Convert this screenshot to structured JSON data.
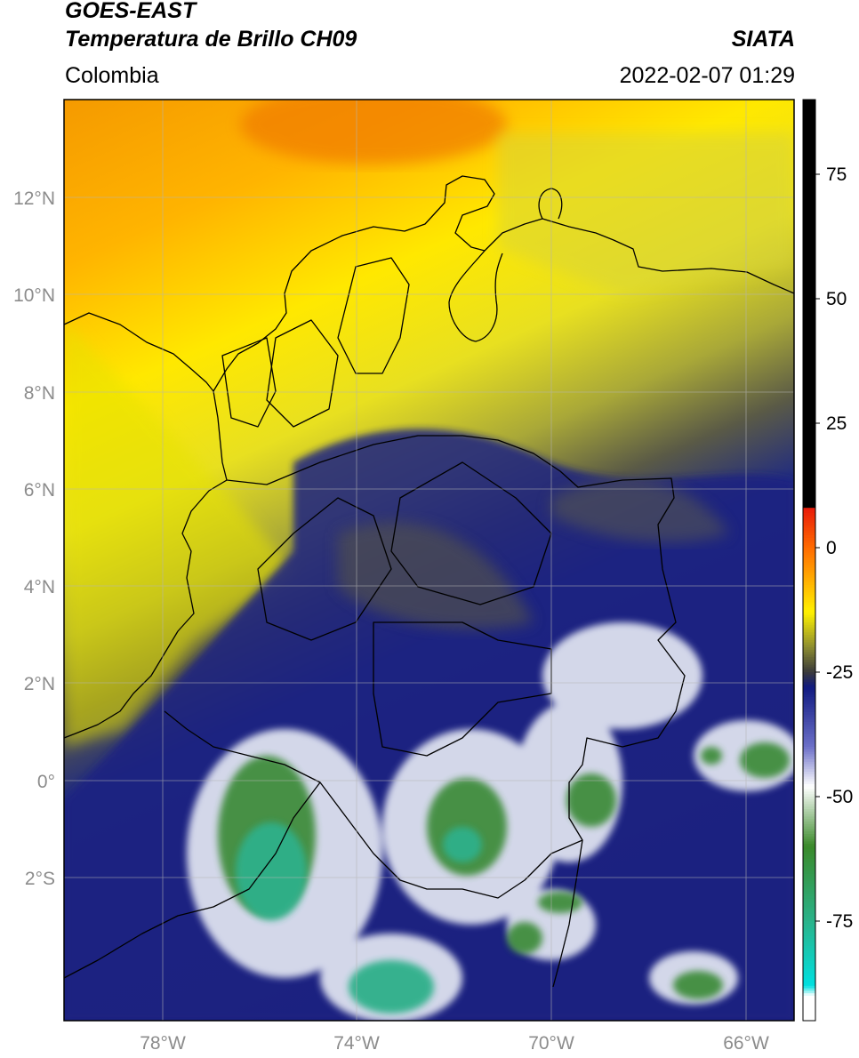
{
  "header": {
    "satellite": "GOES-EAST",
    "product": "Temperatura de Brillo CH09",
    "region": "Colombia",
    "organization": "SIATA",
    "datetime": "2022-02-07 01:29"
  },
  "map": {
    "lon_range": [
      -80,
      -65
    ],
    "lat_range": [
      -5.2,
      14
    ],
    "lon_ticks": [
      -78,
      -74,
      -70,
      -66
    ],
    "lat_ticks": [
      12,
      10,
      8,
      6,
      4,
      2,
      0,
      -2
    ],
    "lon_tick_labels": [
      "78°W",
      "74°W",
      "70°W",
      "66°W"
    ],
    "lat_tick_labels": [
      "12°N",
      "10°N",
      "8°N",
      "6°N",
      "4°N",
      "2°N",
      "0°",
      "2°S"
    ],
    "grid": true
  },
  "colorbar": {
    "range": [
      -95,
      90
    ],
    "ticks": [
      75,
      50,
      25,
      0,
      -25,
      -50,
      -75
    ],
    "tick_labels": [
      "75",
      "50",
      "25",
      "0",
      "-25",
      "-50",
      "-75"
    ],
    "stops": [
      {
        "value": 90,
        "color": "#000000"
      },
      {
        "value": 8,
        "color": "#000000"
      },
      {
        "value": 8,
        "color": "#e81a0a"
      },
      {
        "value": 0,
        "color": "#ff6a00"
      },
      {
        "value": -13,
        "color": "#fff200"
      },
      {
        "value": -20,
        "color": "#8c8c30"
      },
      {
        "value": -25,
        "color": "#3a3a3a"
      },
      {
        "value": -28,
        "color": "#101a80"
      },
      {
        "value": -40,
        "color": "#6c70c8"
      },
      {
        "value": -48,
        "color": "#ffffff"
      },
      {
        "value": -60,
        "color": "#3a8a2a"
      },
      {
        "value": -75,
        "color": "#2ab38a"
      },
      {
        "value": -88,
        "color": "#00e0e0"
      },
      {
        "value": -90,
        "color": "#ffffff"
      },
      {
        "value": -95,
        "color": "#ffffff"
      }
    ]
  },
  "field_colors": {
    "warm_ocean": "#f5a000",
    "coast_yellow": "#fff200",
    "mid_olive": "#7a7a3a",
    "deep_blue": "#1a1f86",
    "cloud_white": "#e8ecf4",
    "cloud_green": "#3a8a3a",
    "cloud_teal": "#2fb08a"
  }
}
